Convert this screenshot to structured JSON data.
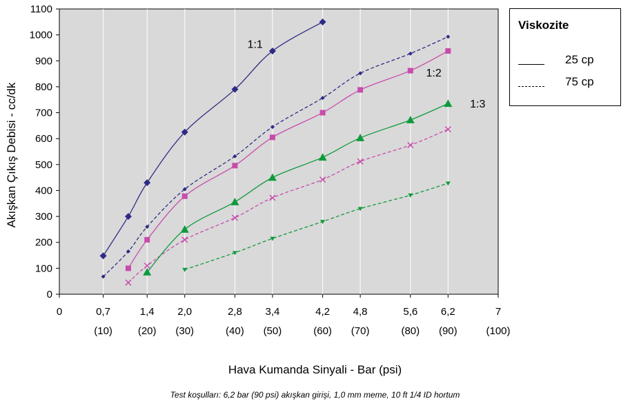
{
  "chart_data": {
    "type": "line",
    "xlabel": "Hava Kumanda Sinyali - Bar (psi)",
    "ylabel": "Akışkan Çıkış Debisi - cc/dk",
    "caption": "Test koşulları: 6,2 bar (90 psi) akışkan girişi, 1,0 mm meme, 10 ft 1/4 ID hortum",
    "xlim": [
      0,
      7
    ],
    "ylim": [
      0,
      1100
    ],
    "yticks": [
      "0",
      "100",
      "200",
      "300",
      "400",
      "500",
      "600",
      "700",
      "800",
      "900",
      "1000",
      "1100"
    ],
    "xticks": [
      {
        "v": 0,
        "label": "0",
        "sub": ""
      },
      {
        "v": 0.7,
        "label": "0,7",
        "sub": "(10)"
      },
      {
        "v": 1.4,
        "label": "1,4",
        "sub": "(20)"
      },
      {
        "v": 2.0,
        "label": "2,0",
        "sub": "(30)"
      },
      {
        "v": 2.8,
        "label": "2,8",
        "sub": "(40)"
      },
      {
        "v": 3.4,
        "label": "3,4",
        "sub": "(50)"
      },
      {
        "v": 4.2,
        "label": "4,2",
        "sub": "(60)"
      },
      {
        "v": 4.8,
        "label": "4,8",
        "sub": "(70)"
      },
      {
        "v": 5.6,
        "label": "5,6",
        "sub": "(80)"
      },
      {
        "v": 6.2,
        "label": "6,2",
        "sub": "(90)"
      },
      {
        "v": 7,
        "label": "7",
        "sub": "(100)"
      }
    ],
    "grid": "vertical",
    "legend": {
      "title": "Viskozite",
      "position": "top-right",
      "entries": [
        {
          "style": "solid",
          "label": "25 cp"
        },
        {
          "style": "dashed",
          "label": "75 cp"
        }
      ]
    },
    "annotations": [
      {
        "text": "1:1",
        "color": "#2e2a85",
        "x": 3.0,
        "y": 950
      },
      {
        "text": "1:2",
        "color": "#c84cab",
        "x": 5.85,
        "y": 840
      },
      {
        "text": "1:3",
        "color": "#0f9a3c",
        "x": 6.55,
        "y": 720
      }
    ],
    "series": [
      {
        "ratio": "1:1",
        "viscosity": "25 cp",
        "dash": false,
        "color": "#2e2a85",
        "marker": "diamond",
        "points": [
          [
            0.7,
            148
          ],
          [
            1.1,
            300
          ],
          [
            1.4,
            430
          ],
          [
            2.0,
            625
          ],
          [
            2.8,
            790
          ],
          [
            3.4,
            938
          ],
          [
            4.2,
            1050
          ]
        ]
      },
      {
        "ratio": "1:1",
        "viscosity": "75 cp",
        "dash": true,
        "color": "#2e2a85",
        "marker": "smalldiamond",
        "points": [
          [
            0.7,
            68
          ],
          [
            1.1,
            165
          ],
          [
            1.4,
            260
          ],
          [
            2.0,
            405
          ],
          [
            2.8,
            532
          ],
          [
            3.4,
            645
          ],
          [
            4.2,
            757
          ],
          [
            4.8,
            852
          ],
          [
            5.6,
            928
          ],
          [
            6.2,
            993
          ]
        ]
      },
      {
        "ratio": "1:2",
        "viscosity": "25 cp",
        "dash": false,
        "color": "#c84cab",
        "marker": "square",
        "points": [
          [
            1.1,
            100
          ],
          [
            1.4,
            210
          ],
          [
            2.0,
            378
          ],
          [
            2.8,
            496
          ],
          [
            3.4,
            605
          ],
          [
            4.2,
            700
          ],
          [
            4.8,
            788
          ],
          [
            5.6,
            862
          ],
          [
            6.2,
            938
          ]
        ]
      },
      {
        "ratio": "1:2",
        "viscosity": "75 cp",
        "dash": true,
        "color": "#c84cab",
        "marker": "x",
        "points": [
          [
            1.1,
            45
          ],
          [
            1.4,
            110
          ],
          [
            2.0,
            210
          ],
          [
            2.8,
            295
          ],
          [
            3.4,
            372
          ],
          [
            4.2,
            442
          ],
          [
            4.8,
            512
          ],
          [
            5.6,
            575
          ],
          [
            6.2,
            636
          ]
        ]
      },
      {
        "ratio": "1:3",
        "viscosity": "25 cp",
        "dash": false,
        "color": "#0f9a3c",
        "marker": "triangle",
        "points": [
          [
            1.4,
            85
          ],
          [
            2.0,
            250
          ],
          [
            2.8,
            356
          ],
          [
            3.4,
            450
          ],
          [
            4.2,
            528
          ],
          [
            4.8,
            603
          ],
          [
            5.6,
            672
          ],
          [
            6.2,
            735
          ]
        ]
      },
      {
        "ratio": "1:3",
        "viscosity": "75 cp",
        "dash": true,
        "color": "#0f9a3c",
        "marker": "smalltriangle",
        "points": [
          [
            2.0,
            95
          ],
          [
            2.8,
            160
          ],
          [
            3.4,
            215
          ],
          [
            4.2,
            280
          ],
          [
            4.8,
            330
          ],
          [
            5.6,
            382
          ],
          [
            6.2,
            428
          ]
        ]
      }
    ]
  }
}
